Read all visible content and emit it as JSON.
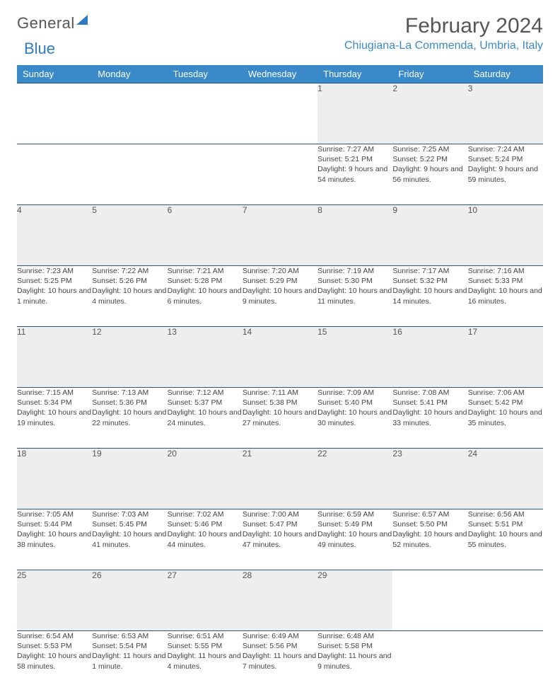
{
  "logo": {
    "text_gray": "General",
    "text_blue": "Blue"
  },
  "title": "February 2024",
  "location": "Chiugiana-La Commenda, Umbria, Italy",
  "colors": {
    "header_bg": "#3a8ac9",
    "header_text": "#ffffff",
    "daynum_bg": "#eeeeee",
    "row_border": "#2d577a",
    "body_text": "#444444",
    "location_text": "#3a8ac9",
    "title_text": "#555555"
  },
  "day_headers": [
    "Sunday",
    "Monday",
    "Tuesday",
    "Wednesday",
    "Thursday",
    "Friday",
    "Saturday"
  ],
  "weeks": [
    [
      {
        "n": "",
        "sr": "",
        "ss": "",
        "dl": ""
      },
      {
        "n": "",
        "sr": "",
        "ss": "",
        "dl": ""
      },
      {
        "n": "",
        "sr": "",
        "ss": "",
        "dl": ""
      },
      {
        "n": "",
        "sr": "",
        "ss": "",
        "dl": ""
      },
      {
        "n": "1",
        "sr": "Sunrise: 7:27 AM",
        "ss": "Sunset: 5:21 PM",
        "dl": "Daylight: 9 hours and 54 minutes."
      },
      {
        "n": "2",
        "sr": "Sunrise: 7:25 AM",
        "ss": "Sunset: 5:22 PM",
        "dl": "Daylight: 9 hours and 56 minutes."
      },
      {
        "n": "3",
        "sr": "Sunrise: 7:24 AM",
        "ss": "Sunset: 5:24 PM",
        "dl": "Daylight: 9 hours and 59 minutes."
      }
    ],
    [
      {
        "n": "4",
        "sr": "Sunrise: 7:23 AM",
        "ss": "Sunset: 5:25 PM",
        "dl": "Daylight: 10 hours and 1 minute."
      },
      {
        "n": "5",
        "sr": "Sunrise: 7:22 AM",
        "ss": "Sunset: 5:26 PM",
        "dl": "Daylight: 10 hours and 4 minutes."
      },
      {
        "n": "6",
        "sr": "Sunrise: 7:21 AM",
        "ss": "Sunset: 5:28 PM",
        "dl": "Daylight: 10 hours and 6 minutes."
      },
      {
        "n": "7",
        "sr": "Sunrise: 7:20 AM",
        "ss": "Sunset: 5:29 PM",
        "dl": "Daylight: 10 hours and 9 minutes."
      },
      {
        "n": "8",
        "sr": "Sunrise: 7:19 AM",
        "ss": "Sunset: 5:30 PM",
        "dl": "Daylight: 10 hours and 11 minutes."
      },
      {
        "n": "9",
        "sr": "Sunrise: 7:17 AM",
        "ss": "Sunset: 5:32 PM",
        "dl": "Daylight: 10 hours and 14 minutes."
      },
      {
        "n": "10",
        "sr": "Sunrise: 7:16 AM",
        "ss": "Sunset: 5:33 PM",
        "dl": "Daylight: 10 hours and 16 minutes."
      }
    ],
    [
      {
        "n": "11",
        "sr": "Sunrise: 7:15 AM",
        "ss": "Sunset: 5:34 PM",
        "dl": "Daylight: 10 hours and 19 minutes."
      },
      {
        "n": "12",
        "sr": "Sunrise: 7:13 AM",
        "ss": "Sunset: 5:36 PM",
        "dl": "Daylight: 10 hours and 22 minutes."
      },
      {
        "n": "13",
        "sr": "Sunrise: 7:12 AM",
        "ss": "Sunset: 5:37 PM",
        "dl": "Daylight: 10 hours and 24 minutes."
      },
      {
        "n": "14",
        "sr": "Sunrise: 7:11 AM",
        "ss": "Sunset: 5:38 PM",
        "dl": "Daylight: 10 hours and 27 minutes."
      },
      {
        "n": "15",
        "sr": "Sunrise: 7:09 AM",
        "ss": "Sunset: 5:40 PM",
        "dl": "Daylight: 10 hours and 30 minutes."
      },
      {
        "n": "16",
        "sr": "Sunrise: 7:08 AM",
        "ss": "Sunset: 5:41 PM",
        "dl": "Daylight: 10 hours and 33 minutes."
      },
      {
        "n": "17",
        "sr": "Sunrise: 7:06 AM",
        "ss": "Sunset: 5:42 PM",
        "dl": "Daylight: 10 hours and 35 minutes."
      }
    ],
    [
      {
        "n": "18",
        "sr": "Sunrise: 7:05 AM",
        "ss": "Sunset: 5:44 PM",
        "dl": "Daylight: 10 hours and 38 minutes."
      },
      {
        "n": "19",
        "sr": "Sunrise: 7:03 AM",
        "ss": "Sunset: 5:45 PM",
        "dl": "Daylight: 10 hours and 41 minutes."
      },
      {
        "n": "20",
        "sr": "Sunrise: 7:02 AM",
        "ss": "Sunset: 5:46 PM",
        "dl": "Daylight: 10 hours and 44 minutes."
      },
      {
        "n": "21",
        "sr": "Sunrise: 7:00 AM",
        "ss": "Sunset: 5:47 PM",
        "dl": "Daylight: 10 hours and 47 minutes."
      },
      {
        "n": "22",
        "sr": "Sunrise: 6:59 AM",
        "ss": "Sunset: 5:49 PM",
        "dl": "Daylight: 10 hours and 49 minutes."
      },
      {
        "n": "23",
        "sr": "Sunrise: 6:57 AM",
        "ss": "Sunset: 5:50 PM",
        "dl": "Daylight: 10 hours and 52 minutes."
      },
      {
        "n": "24",
        "sr": "Sunrise: 6:56 AM",
        "ss": "Sunset: 5:51 PM",
        "dl": "Daylight: 10 hours and 55 minutes."
      }
    ],
    [
      {
        "n": "25",
        "sr": "Sunrise: 6:54 AM",
        "ss": "Sunset: 5:53 PM",
        "dl": "Daylight: 10 hours and 58 minutes."
      },
      {
        "n": "26",
        "sr": "Sunrise: 6:53 AM",
        "ss": "Sunset: 5:54 PM",
        "dl": "Daylight: 11 hours and 1 minute."
      },
      {
        "n": "27",
        "sr": "Sunrise: 6:51 AM",
        "ss": "Sunset: 5:55 PM",
        "dl": "Daylight: 11 hours and 4 minutes."
      },
      {
        "n": "28",
        "sr": "Sunrise: 6:49 AM",
        "ss": "Sunset: 5:56 PM",
        "dl": "Daylight: 11 hours and 7 minutes."
      },
      {
        "n": "29",
        "sr": "Sunrise: 6:48 AM",
        "ss": "Sunset: 5:58 PM",
        "dl": "Daylight: 11 hours and 9 minutes."
      },
      {
        "n": "",
        "sr": "",
        "ss": "",
        "dl": ""
      },
      {
        "n": "",
        "sr": "",
        "ss": "",
        "dl": ""
      }
    ]
  ]
}
